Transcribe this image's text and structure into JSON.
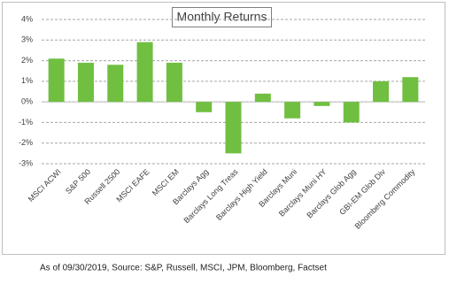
{
  "chart_data": {
    "type": "bar",
    "title": "Monthly Returns",
    "categories": [
      "MSCI ACWI",
      "S&P 500",
      "Russell 2500",
      "MSCI EAFE",
      "MSCI EM",
      "Barclays Agg",
      "Barclays Long Treas",
      "Barclays High Yield",
      "Barclays Muni",
      "Barclays Muni HY",
      "Barclays Glob Agg",
      "GBI-EM Glob Div",
      "Bloomberg Commodity"
    ],
    "values": [
      2.1,
      1.9,
      1.8,
      2.9,
      1.9,
      -0.5,
      -2.5,
      0.4,
      -0.8,
      -0.2,
      -1.0,
      1.0,
      1.2
    ],
    "color": "#70bf41",
    "ylim": [
      -3,
      4
    ],
    "yticks": [
      {
        "value": 4,
        "label": "4%"
      },
      {
        "value": 3,
        "label": "3%"
      },
      {
        "value": 2,
        "label": "2%"
      },
      {
        "value": 1,
        "label": "1%"
      },
      {
        "value": 0,
        "label": "0%"
      },
      {
        "value": -1,
        "label": "-1%"
      },
      {
        "value": -2,
        "label": "-2%"
      },
      {
        "value": -3,
        "label": "-3%"
      }
    ],
    "grid": true,
    "note": "As of 09/30/2019, Source: S&P, Russell, MSCI, JPM, Bloomberg, Factset"
  }
}
